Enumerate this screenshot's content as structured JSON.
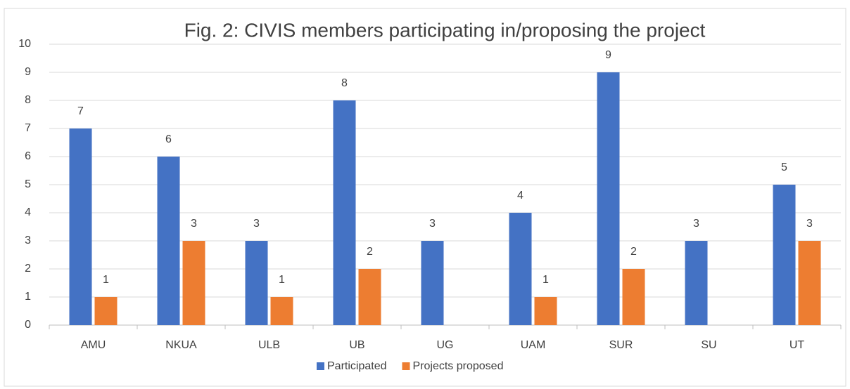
{
  "chart_data": {
    "type": "bar",
    "title": "Fig. 2: CIVIS members participating in/proposing the project",
    "categories": [
      "AMU",
      "NKUA",
      "ULB",
      "UB",
      "UG",
      "UAM",
      "SUR",
      "SU",
      "UT"
    ],
    "series": [
      {
        "name": "Participated",
        "color": "#4472c4",
        "values": [
          7,
          6,
          3,
          8,
          3,
          4,
          9,
          3,
          5
        ]
      },
      {
        "name": "Projects proposed",
        "color": "#ed7d31",
        "values": [
          1,
          3,
          1,
          2,
          null,
          1,
          2,
          null,
          3
        ]
      }
    ],
    "ylim": [
      0,
      10
    ],
    "yticks": [
      0,
      1,
      2,
      3,
      4,
      5,
      6,
      7,
      8,
      9,
      10
    ],
    "grid": true,
    "legend": "bottom"
  }
}
